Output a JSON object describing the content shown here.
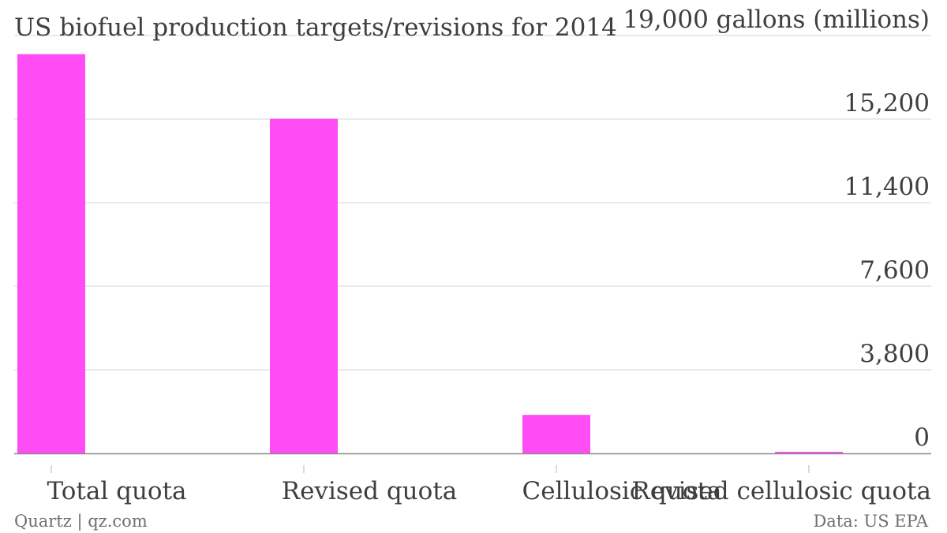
{
  "chart_data": {
    "type": "bar",
    "title": "US biofuel production targets/revisions for 2014",
    "ylabel": "gallons (millions)",
    "categories": [
      "Total quota",
      "Revised quota",
      "Cellulosic quota",
      "Revised cellulosic quota"
    ],
    "values": [
      18150,
      15210,
      1750,
      17
    ],
    "ylim": [
      0,
      19000
    ],
    "yticks": [
      0,
      3800,
      7600,
      11400,
      15200,
      19000
    ],
    "ytick_labels": [
      "0",
      "3,800",
      "7,600",
      "11,400",
      "15,200",
      "19,000"
    ],
    "grid": true,
    "bar_color": "#ff4cf5"
  },
  "footer": {
    "source_left": "Quartz | qz.com",
    "source_right": "Data: US EPA"
  }
}
